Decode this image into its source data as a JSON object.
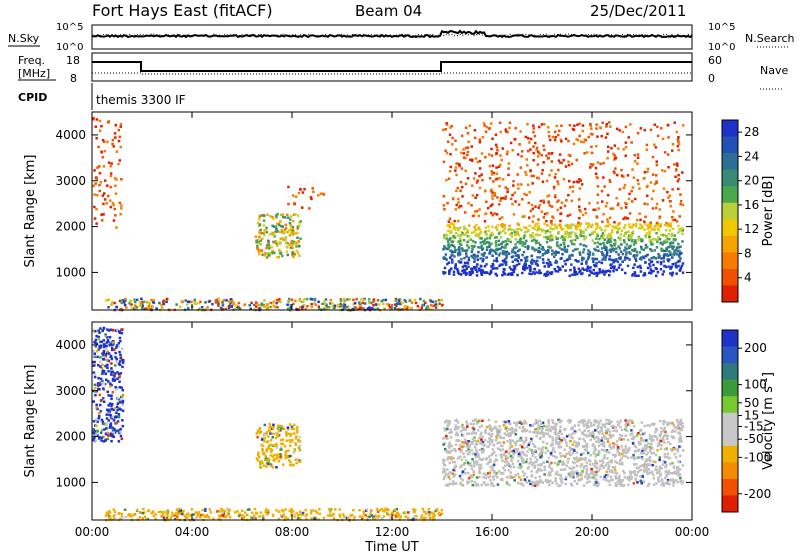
{
  "header": {
    "station": "Fort Hays East (fitACF)",
    "beam": "Beam 04",
    "date": "25/Dec/2011"
  },
  "top_panels": {
    "nsky_label": "N.Sky",
    "nsearch_label": "N.Search",
    "nsky_ticks": [
      "10^5",
      "10^0"
    ],
    "nsearch_ticks": [
      "10^5",
      "10^0"
    ],
    "freq_label_1": "Freq.",
    "freq_label_2": "[MHz]",
    "freq_ticks": [
      "18",
      "8"
    ],
    "nave_label": "Nave",
    "nave_ticks": [
      "60",
      "0"
    ],
    "cpid_label": "CPID",
    "cpid_text": "themis 3300 IF"
  },
  "colors": {
    "power_scale": [
      "#1e32c8",
      "#2350b4",
      "#2e6e96",
      "#3a8a74",
      "#4aa84c",
      "#b8cf38",
      "#f0c800",
      "#f5a300",
      "#f57c00",
      "#f05000",
      "#e02000"
    ],
    "velocity_scale": [
      "#1e32c8",
      "#2a55c0",
      "#2e7a7a",
      "#3c9a3c",
      "#78c830",
      "#c8c8c8",
      "#c8c8c8",
      "#f0b000",
      "#f58c00",
      "#f05000",
      "#e01e00"
    ],
    "ground_scatter": "#c0c0c0"
  },
  "chart_data": [
    {
      "type": "heatmap",
      "title": "",
      "xlabel": "",
      "ylabel": "Slant Range [km]",
      "x_ticks": [
        "00:00",
        "04:00",
        "08:00",
        "12:00",
        "16:00",
        "20:00",
        "00:00"
      ],
      "xlim_hours": [
        0,
        24
      ],
      "y_ticks": [
        1000,
        2000,
        3000,
        4000
      ],
      "ylim_km": [
        180,
        4500
      ],
      "colorbar": {
        "label": "Power [dB]",
        "ticks": [
          4,
          8,
          12,
          16,
          20,
          24,
          28
        ],
        "range": [
          0,
          30
        ]
      },
      "echo_regions": [
        {
          "t_start": 0.0,
          "t_end": 1.2,
          "r_low": 1900,
          "r_high": 4400,
          "level": "low"
        },
        {
          "t_start": 6.5,
          "t_end": 8.3,
          "r_low": 1350,
          "r_high": 2300,
          "level": "mid"
        },
        {
          "t_start": 7.8,
          "t_end": 9.3,
          "r_low": 2400,
          "r_high": 2900,
          "level": "low"
        },
        {
          "t_start": 0.5,
          "t_end": 14.0,
          "r_low": 200,
          "r_high": 450,
          "level": "mixed"
        },
        {
          "t_start": 14.0,
          "t_end": 23.6,
          "r_low": 950,
          "r_high": 2100,
          "level": "high"
        },
        {
          "t_start": 14.0,
          "t_end": 23.6,
          "r_low": 2100,
          "r_high": 4300,
          "level": "low"
        }
      ]
    },
    {
      "type": "heatmap",
      "title": "",
      "xlabel": "Time UT",
      "ylabel": "Slant Range [km]",
      "x_ticks": [
        "00:00",
        "04:00",
        "08:00",
        "12:00",
        "16:00",
        "20:00",
        "00:00"
      ],
      "xlim_hours": [
        0,
        24
      ],
      "y_ticks": [
        1000,
        2000,
        3000,
        4000
      ],
      "ylim_km": [
        180,
        4500
      ],
      "colorbar": {
        "label": "Velocity [m s^-1]",
        "ticks": [
          200,
          100,
          50,
          15,
          -15,
          -50,
          -100,
          -200
        ],
        "range": [
          -250,
          250
        ]
      },
      "echo_regions": [
        {
          "t_start": 0.0,
          "t_end": 1.2,
          "r_low": 1900,
          "r_high": 4400,
          "level": "toward"
        },
        {
          "t_start": 6.5,
          "t_end": 8.3,
          "r_low": 1350,
          "r_high": 2300,
          "level": "away-slow"
        },
        {
          "t_start": 0.5,
          "t_end": 14.0,
          "r_low": 200,
          "r_high": 450,
          "level": "away-slow"
        },
        {
          "t_start": 14.0,
          "t_end": 23.6,
          "r_low": 950,
          "r_high": 2400,
          "level": "ground"
        }
      ]
    }
  ]
}
